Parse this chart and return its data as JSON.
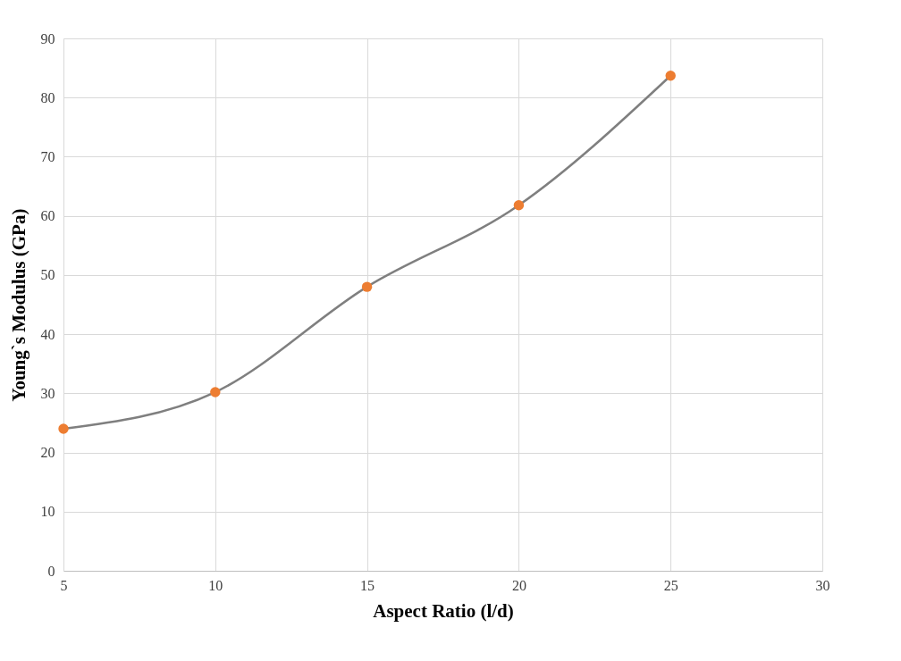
{
  "chart_data": {
    "type": "line",
    "xlabel": "Aspect Ratio (l/d)",
    "ylabel": "Young`s   Modulus  (GPa)",
    "x": [
      5,
      10,
      15,
      20,
      25
    ],
    "series": [
      {
        "color": "#7f7f7f",
        "marker": "none",
        "values": [
          24,
          30.2,
          48,
          61.8,
          83.7
        ]
      },
      {
        "type": "scatter",
        "color": "#ed7d31",
        "values": [
          24,
          30.2,
          48,
          61.8,
          83.7
        ]
      }
    ],
    "xlim": [
      5,
      30
    ],
    "xticks": [
      5,
      10,
      15,
      20,
      25,
      30
    ],
    "ylim": [
      0,
      90
    ],
    "yticks": [
      0,
      10,
      20,
      30,
      40,
      50,
      60,
      70,
      80,
      90
    ],
    "grid": true
  }
}
